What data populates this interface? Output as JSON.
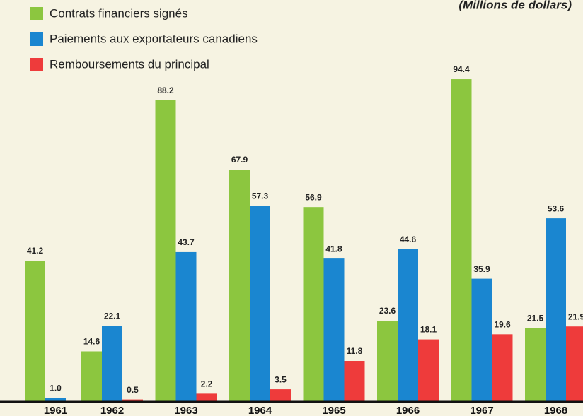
{
  "chart_data": {
    "type": "bar",
    "subtitle": "(Millions de dollars)",
    "categories": [
      "1961",
      "1962",
      "1963",
      "1964",
      "1965",
      "1966",
      "1967",
      "1968"
    ],
    "series": [
      {
        "name": "Contrats financiers signés",
        "color": "#8cc63f",
        "values": [
          41.2,
          14.6,
          88.2,
          67.9,
          56.9,
          23.6,
          94.4,
          21.5
        ]
      },
      {
        "name": "Paiements aux exportateurs canadiens",
        "color": "#1a86d0",
        "values": [
          1.0,
          22.1,
          43.7,
          57.3,
          41.8,
          44.6,
          35.9,
          53.6
        ],
        "value_labels": [
          "1.0",
          "22.1",
          "43.7",
          "57.3",
          "41.8",
          "44.6",
          "35.9",
          "53.6"
        ]
      },
      {
        "name": "Remboursements du principal",
        "color": "#ee3b3b",
        "values": [
          null,
          0.5,
          2.2,
          3.5,
          11.8,
          18.1,
          19.6,
          21.9
        ]
      }
    ],
    "legend": "upper left"
  }
}
